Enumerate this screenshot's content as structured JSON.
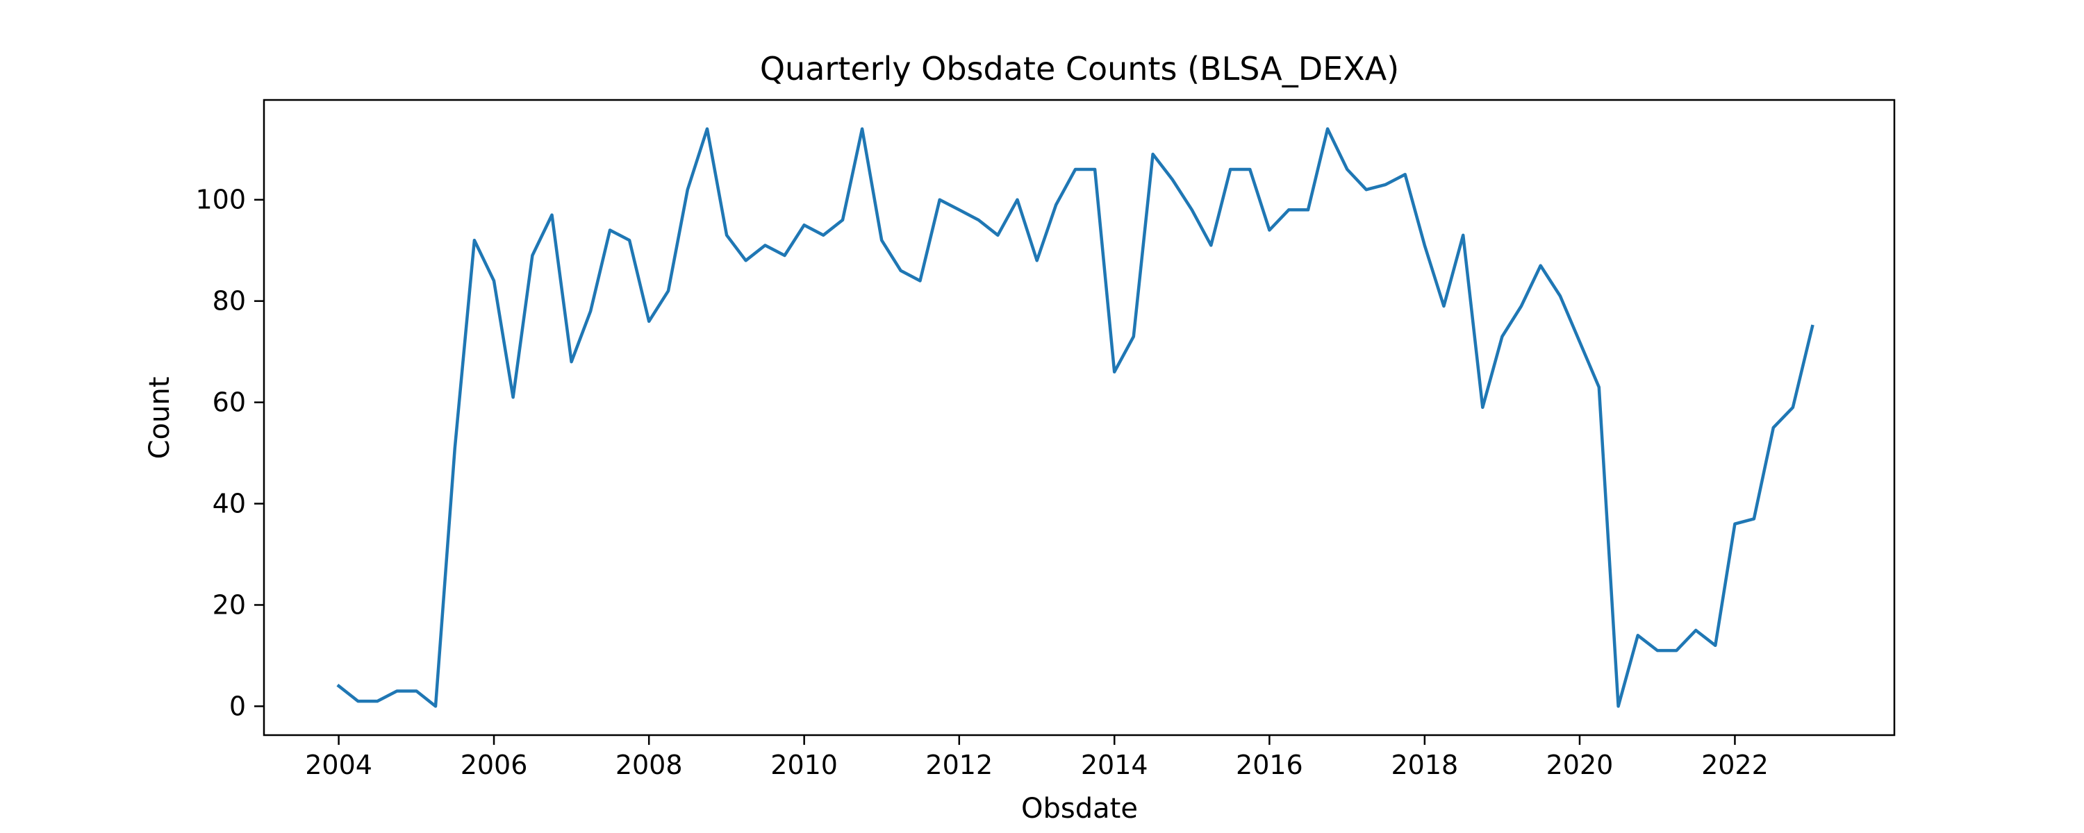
{
  "chart_data": {
    "type": "line",
    "title": "Quarterly Obsdate Counts (BLSA_DEXA)",
    "xlabel": "Obsdate",
    "ylabel": "Count",
    "xlim": [
      "2003-01-14",
      "2024-01-22"
    ],
    "ylim": [
      -5.7,
      119.7
    ],
    "x_ticks": [
      "2004",
      "2006",
      "2008",
      "2010",
      "2012",
      "2014",
      "2016",
      "2018",
      "2020",
      "2022"
    ],
    "y_ticks": [
      "0",
      "20",
      "40",
      "60",
      "80",
      "100"
    ],
    "grid": false,
    "legend": "none",
    "series": [
      {
        "color": "#1f77b4",
        "x": [
          "2004-01-01",
          "2004-04-01",
          "2004-07-01",
          "2004-10-01",
          "2005-01-01",
          "2005-04-01",
          "2005-07-01",
          "2005-10-01",
          "2006-01-01",
          "2006-04-01",
          "2006-07-01",
          "2006-10-01",
          "2007-01-01",
          "2007-04-01",
          "2007-07-01",
          "2007-10-01",
          "2008-01-01",
          "2008-04-01",
          "2008-07-01",
          "2008-10-01",
          "2009-01-01",
          "2009-04-01",
          "2009-07-01",
          "2009-10-01",
          "2010-01-01",
          "2010-04-01",
          "2010-07-01",
          "2010-10-01",
          "2011-01-01",
          "2011-04-01",
          "2011-07-01",
          "2011-10-01",
          "2012-01-01",
          "2012-04-01",
          "2012-07-01",
          "2012-10-01",
          "2013-01-01",
          "2013-04-01",
          "2013-07-01",
          "2013-10-01",
          "2014-01-01",
          "2014-04-01",
          "2014-07-01",
          "2014-10-01",
          "2015-01-01",
          "2015-04-01",
          "2015-07-01",
          "2015-10-01",
          "2016-01-01",
          "2016-04-01",
          "2016-07-01",
          "2016-10-01",
          "2017-01-01",
          "2017-04-01",
          "2017-07-01",
          "2017-10-01",
          "2018-01-01",
          "2018-04-01",
          "2018-07-01",
          "2018-10-01",
          "2019-01-01",
          "2019-04-01",
          "2019-07-01",
          "2019-10-01",
          "2020-04-01",
          "2020-07-01",
          "2020-10-01",
          "2021-01-01",
          "2021-04-01",
          "2021-07-01",
          "2021-10-01",
          "2022-01-01",
          "2022-04-01",
          "2022-07-01",
          "2022-10-01",
          "2023-01-01"
        ],
        "values": [
          4,
          1,
          1,
          3,
          3,
          0,
          51,
          92,
          84,
          61,
          89,
          97,
          68,
          78,
          94,
          92,
          76,
          82,
          102,
          114,
          93,
          88,
          91,
          89,
          95,
          93,
          96,
          114,
          92,
          86,
          84,
          100,
          98,
          96,
          93,
          100,
          88,
          99,
          106,
          106,
          66,
          73,
          109,
          104,
          98,
          91,
          106,
          106,
          94,
          98,
          98,
          114,
          106,
          102,
          103,
          105,
          91,
          79,
          93,
          59,
          73,
          79,
          87,
          81,
          63,
          0,
          14,
          11,
          11,
          15,
          12,
          36,
          37,
          55,
          59,
          75
        ]
      }
    ]
  }
}
